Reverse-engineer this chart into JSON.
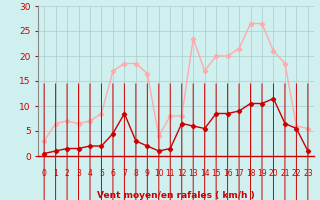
{
  "x": [
    0,
    1,
    2,
    3,
    4,
    5,
    6,
    7,
    8,
    9,
    10,
    11,
    12,
    13,
    14,
    15,
    16,
    17,
    18,
    19,
    20,
    21,
    22,
    23
  ],
  "avg_wind": [
    0.5,
    1,
    1.5,
    1.5,
    2,
    2,
    4.5,
    8.5,
    3,
    2,
    1,
    1.5,
    6.5,
    6,
    5.5,
    8.5,
    8.5,
    9,
    10.5,
    10.5,
    11.5,
    6.5,
    5.5,
    1
  ],
  "gust_wind": [
    3,
    6.5,
    7,
    6.5,
    7,
    8.5,
    17,
    18.5,
    18.5,
    16.5,
    4,
    8,
    8,
    23.5,
    17,
    20,
    20,
    21.5,
    26.5,
    26.5,
    21,
    18.5,
    6,
    5.5
  ],
  "avg_color": "#cc0000",
  "gust_color": "#ffaaaa",
  "bg_color": "#cff0ee",
  "grid_color": "#aacccc",
  "ylim": [
    0,
    30
  ],
  "xlim_min": -0.5,
  "xlim_max": 23.5,
  "yticks": [
    0,
    5,
    10,
    15,
    20,
    25,
    30
  ],
  "xticks": [
    0,
    1,
    2,
    3,
    4,
    5,
    6,
    7,
    8,
    9,
    10,
    11,
    12,
    13,
    14,
    15,
    16,
    17,
    18,
    19,
    20,
    21,
    22,
    23
  ],
  "marker": "D",
  "markersize": 2.2,
  "linewidth": 1.0,
  "xlabel": "Vent moyen/en rafales ( km/h )",
  "xlabel_color": "#cc0000",
  "tick_color": "#cc0000",
  "arrow_color": "#cc0000",
  "ytick_fontsize": 6.5,
  "xtick_fontsize": 5.5
}
